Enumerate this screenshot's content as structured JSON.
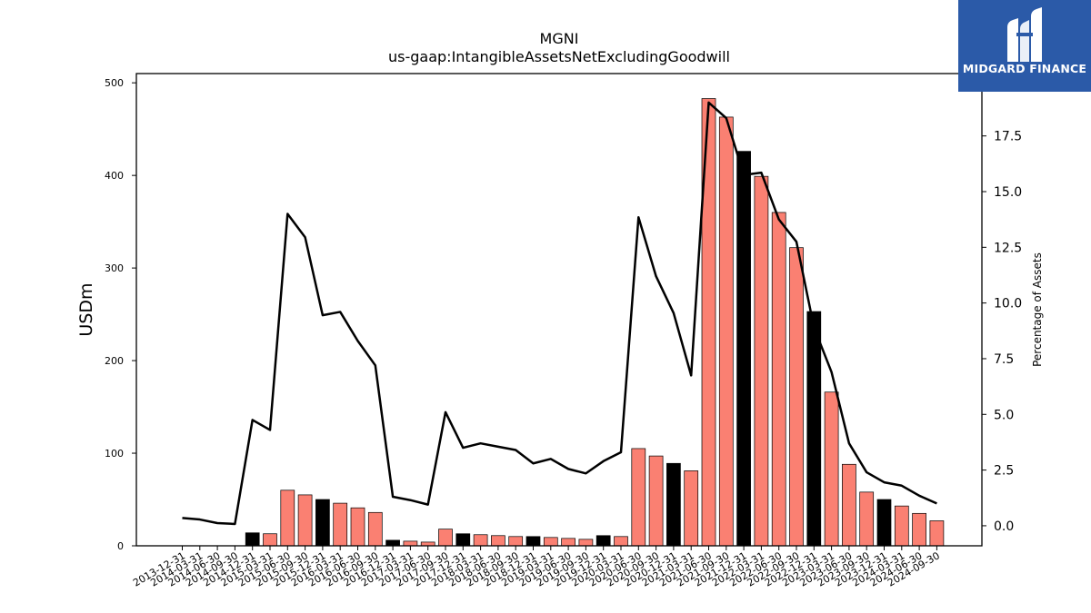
{
  "chart_data": {
    "type": "bar",
    "title": "MGNI",
    "subtitle": "us-gaap:IntangibleAssetsNetExcludingGoodwill",
    "ylabel": "USDm",
    "y2label": "Percentage of Assets",
    "ylim": [
      0,
      510
    ],
    "y2lim": [
      -0.9,
      20.3
    ],
    "yticks": [
      "0",
      "100",
      "200",
      "300",
      "400",
      "500"
    ],
    "y2ticks": [
      "0.0",
      "2.5",
      "5.0",
      "7.5",
      "10.0",
      "12.5",
      "15.0",
      "17.5"
    ],
    "categories": [
      "2013-12-31",
      "2014-03-31",
      "2014-06-30",
      "2014-09-30",
      "2014-12-31",
      "2015-03-31",
      "2015-06-30",
      "2015-09-30",
      "2015-12-31",
      "2016-03-31",
      "2016-06-30",
      "2016-09-30",
      "2016-12-31",
      "2017-03-31",
      "2017-06-30",
      "2017-09-30",
      "2017-12-31",
      "2018-03-31",
      "2018-06-30",
      "2018-09-30",
      "2018-12-31",
      "2019-03-31",
      "2019-06-30",
      "2019-09-30",
      "2019-12-31",
      "2020-03-31",
      "2020-06-30",
      "2020-09-30",
      "2020-12-31",
      "2021-03-31",
      "2021-06-30",
      "2021-09-30",
      "2021-12-31",
      "2022-03-31",
      "2022-06-30",
      "2022-09-30",
      "2022-12-31",
      "2023-03-31",
      "2023-06-30",
      "2023-09-30",
      "2023-12-31",
      "2024-03-31",
      "2024-06-30",
      "2024-09-30"
    ],
    "series": [
      {
        "type": "bar",
        "values": [
          0,
          0,
          0,
          0,
          14,
          13,
          60,
          55,
          50,
          46,
          41,
          36,
          6,
          5,
          4,
          18,
          13,
          12,
          11,
          10,
          10,
          9,
          8,
          7,
          11,
          10,
          105,
          97,
          89,
          81,
          483,
          463,
          426,
          399,
          360,
          322,
          253,
          166,
          88,
          58,
          50,
          43,
          35,
          27
        ],
        "colors": [
          "#fa8072",
          "#fa8072",
          "#fa8072",
          "#fa8072",
          "#000000",
          "#fa8072",
          "#fa8072",
          "#fa8072",
          "#000000",
          "#fa8072",
          "#fa8072",
          "#fa8072",
          "#000000",
          "#fa8072",
          "#fa8072",
          "#fa8072",
          "#000000",
          "#fa8072",
          "#fa8072",
          "#fa8072",
          "#000000",
          "#fa8072",
          "#fa8072",
          "#fa8072",
          "#000000",
          "#fa8072",
          "#fa8072",
          "#fa8072",
          "#000000",
          "#fa8072",
          "#fa8072",
          "#fa8072",
          "#000000",
          "#fa8072",
          "#fa8072",
          "#fa8072",
          "#000000",
          "#fa8072",
          "#fa8072",
          "#fa8072",
          "#000000",
          "#fa8072",
          "#fa8072",
          "#fa8072"
        ]
      },
      {
        "type": "line",
        "axis": "right",
        "color": "#000000",
        "values": [
          0.35,
          0.28,
          0.12,
          0.08,
          4.75,
          4.3,
          14.0,
          12.95,
          9.45,
          9.6,
          8.3,
          7.2,
          1.3,
          1.15,
          0.95,
          5.1,
          3.5,
          3.7,
          3.55,
          3.4,
          2.8,
          3.0,
          2.55,
          2.35,
          2.9,
          3.3,
          13.85,
          11.2,
          9.55,
          6.75,
          19.0,
          18.3,
          15.75,
          15.85,
          13.75,
          12.75,
          8.9,
          6.9,
          3.7,
          2.4,
          1.95,
          1.8,
          1.35,
          1.0
        ]
      }
    ],
    "grid": false,
    "legend": "none"
  },
  "logo": {
    "text": "MIDGARD FINANCE",
    "bg_color": "#2b5aa8"
  }
}
